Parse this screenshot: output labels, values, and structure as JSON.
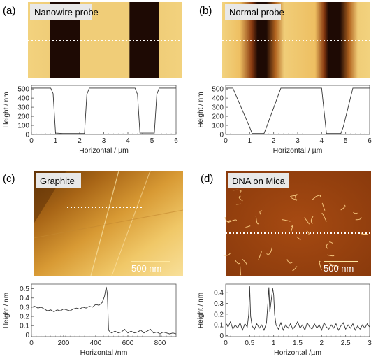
{
  "figure": {
    "panels": [
      {
        "letter": "(a)",
        "image_label": "Nanowire probe",
        "chart_data": {
          "type": "line",
          "xlabel": "Horizontal / µm",
          "ylabel": "Height / nm",
          "xlim": [
            0,
            6
          ],
          "ylim": [
            0,
            540
          ],
          "xticks": [
            "0",
            "1",
            "2",
            "3",
            "4",
            "5",
            "6"
          ],
          "yticks": [
            "0",
            "100",
            "200",
            "300",
            "400",
            "500"
          ],
          "x": [
            0,
            0.8,
            0.9,
            1.0,
            1.3,
            2.2,
            2.3,
            2.4,
            4.3,
            4.4,
            4.5,
            5.1,
            5.2,
            5.3,
            6.0
          ],
          "y": [
            510,
            510,
            450,
            15,
            10,
            10,
            440,
            510,
            510,
            440,
            15,
            15,
            440,
            510,
            510
          ]
        },
        "stripe_colors": [
          "#f0cd78",
          "#1e0a04",
          "#f0cd78",
          "#1e0a04",
          "#f0cd78"
        ]
      },
      {
        "letter": "(b)",
        "image_label": "Normal probe",
        "chart_data": {
          "type": "line",
          "xlabel": "Horizontal / µm",
          "ylabel": "Height / nm",
          "xlim": [
            0,
            6
          ],
          "ylim": [
            0,
            540
          ],
          "xticks": [
            "0",
            "1",
            "2",
            "3",
            "4",
            "5",
            "6"
          ],
          "yticks": [
            "0",
            "100",
            "200",
            "300",
            "400",
            "500"
          ],
          "x": [
            0,
            0.3,
            1.0,
            1.1,
            1.6,
            1.7,
            2.3,
            4.0,
            4.2,
            4.8,
            4.9,
            5.3,
            6.0
          ],
          "y": [
            510,
            510,
            80,
            10,
            10,
            80,
            510,
            510,
            10,
            10,
            80,
            510,
            510
          ]
        },
        "stripe_colors": [
          "#f0cd78",
          "#1e0a04",
          "#f0cd78",
          "#1e0a04",
          "#f0cd78"
        ]
      },
      {
        "letter": "(c)",
        "image_label": "Graphite",
        "scale_bar": "500 nm",
        "chart_data": {
          "type": "line",
          "xlabel": "Horizontal /nm",
          "ylabel": "Height / nm",
          "xlim": [
            0,
            900
          ],
          "ylim": [
            -0.02,
            0.55
          ],
          "xticks": [
            "0",
            "200",
            "400",
            "600",
            "800"
          ],
          "yticks": [
            "0",
            "0.1",
            "0.2",
            "0.3",
            "0.4",
            "0.5"
          ],
          "x": [
            0,
            20,
            40,
            60,
            80,
            100,
            120,
            140,
            160,
            180,
            200,
            220,
            240,
            260,
            280,
            300,
            320,
            340,
            360,
            380,
            400,
            420,
            440,
            455,
            465,
            472,
            480,
            490,
            500,
            520,
            540,
            560,
            580,
            600,
            620,
            640,
            660,
            680,
            700,
            720,
            740,
            760,
            780,
            800,
            820,
            840,
            860,
            880,
            900
          ],
          "y": [
            0.3,
            0.31,
            0.29,
            0.3,
            0.28,
            0.26,
            0.27,
            0.25,
            0.27,
            0.26,
            0.28,
            0.27,
            0.26,
            0.28,
            0.29,
            0.28,
            0.3,
            0.29,
            0.31,
            0.3,
            0.33,
            0.32,
            0.35,
            0.42,
            0.52,
            0.45,
            0.05,
            0.03,
            0.02,
            0.04,
            0.02,
            0.03,
            0.06,
            0.02,
            0.04,
            0.02,
            0.03,
            0.05,
            0.02,
            0.04,
            0.06,
            0.02,
            0.03,
            0.01,
            0.03,
            0.02,
            0.01,
            0.02,
            0.01
          ]
        }
      },
      {
        "letter": "(d)",
        "image_label": "DNA on Mica",
        "scale_bar": "500 nm",
        "chart_data": {
          "type": "line",
          "xlabel": "Horizontal /µm",
          "ylabel": "Height / nm",
          "xlim": [
            0,
            3
          ],
          "ylim": [
            -0.01,
            0.48
          ],
          "xticks": [
            "0",
            "0.5",
            "1",
            "1.5",
            "2",
            "2.5",
            "3"
          ],
          "yticks": [
            "0",
            "0.1",
            "0.2",
            "0.3",
            "0.4"
          ],
          "x": [
            0,
            0.05,
            0.1,
            0.15,
            0.2,
            0.25,
            0.3,
            0.35,
            0.4,
            0.45,
            0.48,
            0.5,
            0.52,
            0.55,
            0.6,
            0.65,
            0.7,
            0.75,
            0.8,
            0.85,
            0.88,
            0.9,
            0.92,
            0.95,
            0.98,
            1.0,
            1.02,
            1.05,
            1.1,
            1.15,
            1.2,
            1.25,
            1.3,
            1.35,
            1.4,
            1.45,
            1.5,
            1.55,
            1.6,
            1.65,
            1.7,
            1.75,
            1.8,
            1.85,
            1.9,
            1.95,
            2.0,
            2.05,
            2.1,
            2.15,
            2.2,
            2.25,
            2.3,
            2.35,
            2.4,
            2.45,
            2.5,
            2.55,
            2.6,
            2.65,
            2.7,
            2.75,
            2.8,
            2.85,
            2.9,
            2.95,
            3.0
          ],
          "y": [
            0.12,
            0.08,
            0.13,
            0.06,
            0.1,
            0.07,
            0.12,
            0.05,
            0.11,
            0.08,
            0.2,
            0.46,
            0.18,
            0.09,
            0.06,
            0.11,
            0.07,
            0.1,
            0.05,
            0.12,
            0.3,
            0.45,
            0.22,
            0.33,
            0.44,
            0.38,
            0.2,
            0.1,
            0.06,
            0.12,
            0.05,
            0.1,
            0.07,
            0.11,
            0.06,
            0.09,
            0.13,
            0.07,
            0.1,
            0.05,
            0.12,
            0.08,
            0.06,
            0.11,
            0.07,
            0.1,
            0.05,
            0.12,
            0.08,
            0.06,
            0.1,
            0.07,
            0.11,
            0.05,
            0.09,
            0.12,
            0.06,
            0.1,
            0.07,
            0.11,
            0.05,
            0.09,
            0.06,
            0.1,
            0.07,
            0.11,
            0.08
          ]
        }
      }
    ]
  }
}
